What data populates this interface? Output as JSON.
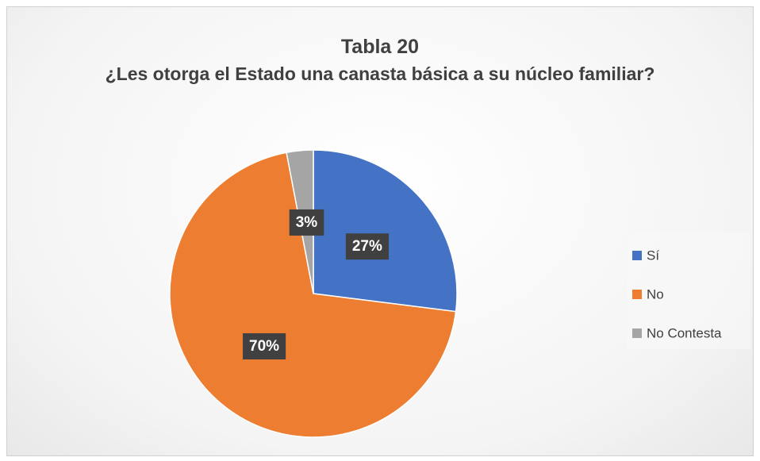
{
  "chart_data": {
    "type": "pie",
    "title": "Tabla 20",
    "subtitle": "¿Les otorga el Estado una canasta básica a su núcleo familiar?",
    "categories": [
      "Sí",
      "No",
      "No Contesta"
    ],
    "values": [
      27,
      70,
      3
    ],
    "value_labels": [
      "27%",
      "70%",
      "3%"
    ],
    "colors": [
      "#4472c4",
      "#ed7d31",
      "#a5a5a5"
    ],
    "legend": "right"
  }
}
